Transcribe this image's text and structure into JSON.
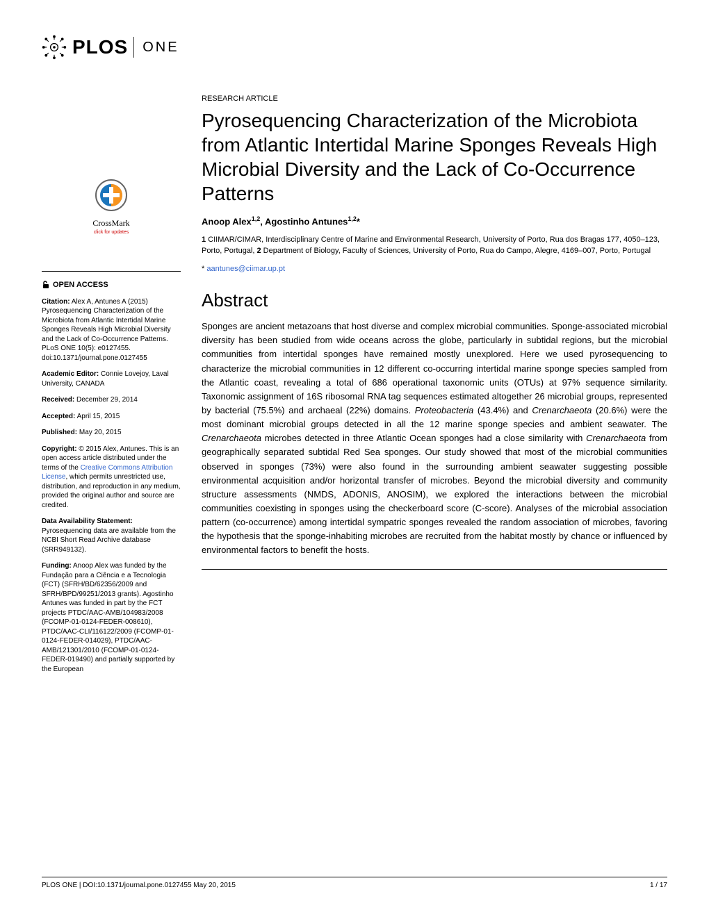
{
  "journal": {
    "logo_main": "PLOS",
    "logo_sub": "ONE"
  },
  "crossmark": {
    "label": "CrossMark",
    "sub": "click for updates"
  },
  "sidebar": {
    "open_access": "OPEN ACCESS",
    "citation_label": "Citation:",
    "citation": " Alex A, Antunes A (2015) Pyrosequencing Characterization of the Microbiota from Atlantic Intertidal Marine Sponges Reveals High Microbial Diversity and the Lack of Co-Occurrence Patterns. PLoS ONE 10(5): e0127455. doi:10.1371/journal.pone.0127455",
    "editor_label": "Academic Editor:",
    "editor": " Connie Lovejoy, Laval University, CANADA",
    "received_label": "Received:",
    "received": " December 29, 2014",
    "accepted_label": "Accepted:",
    "accepted": " April 15, 2015",
    "published_label": "Published:",
    "published": " May 20, 2015",
    "copyright_label": "Copyright:",
    "copyright_pre": " © 2015 Alex, Antunes. This is an open access article distributed under the terms of the ",
    "copyright_link": "Creative Commons Attribution License",
    "copyright_post": ", which permits unrestricted use, distribution, and reproduction in any medium, provided the original author and source are credited.",
    "data_label": "Data Availability Statement:",
    "data": " Pyrosequencing data are available from the NCBI Short Read Archive database (SRR949132).",
    "funding_label": "Funding:",
    "funding": " Anoop Alex was funded by the Fundação para a Ciência e a Tecnologia (FCT) (SFRH/BD/62356/2009 and SFRH/BPD/99251/2013 grants). Agostinho Antunes was funded in part by the FCT projects PTDC/AAC-AMB/104983/2008 (FCOMP-01-0124-FEDER-008610), PTDC/AAC-CLI/116122/2009 (FCOMP-01-0124-FEDER-014029), PTDC/AAC-AMB/121301/2010 (FCOMP-01-0124-FEDER-019490) and partially supported by the European"
  },
  "article": {
    "type": "RESEARCH ARTICLE",
    "title": "Pyrosequencing Characterization of the Microbiota from Atlantic Intertidal Marine Sponges Reveals High Microbial Diversity and the Lack of Co-Occurrence Patterns",
    "authors_html": "Anoop Alex<sup>1,2</sup>, Agostinho Antunes<sup>1,2</sup>*",
    "affiliations_html": "<b>1</b> CIIMAR/CIMAR, Interdisciplinary Centre of Marine and Environmental Research, University of Porto, Rua dos Bragas 177, 4050–123, Porto, Portugal, <b>2</b> Department of Biology, Faculty of Sciences, University of Porto, Rua do Campo, Alegre, 4169–007, Porto, Portugal",
    "corresponding_prefix": "* ",
    "corresponding_email": "aantunes@ciimar.up.pt",
    "abstract_heading": "Abstract",
    "abstract": "Sponges are ancient metazoans that host diverse and complex microbial communities. Sponge-associated microbial diversity has been studied from wide oceans across the globe, particularly in subtidal regions, but the microbial communities from intertidal sponges have remained mostly unexplored. Here we used pyrosequencing to characterize the microbial communities in 12 different co-occurring intertidal marine sponge species sampled from the Atlantic coast, revealing a total of 686 operational taxonomic units (OTUs) at 97% sequence similarity. Taxonomic assignment of 16S ribosomal RNA tag sequences estimated altogether 26 microbial groups, represented by bacterial (75.5%) and archaeal (22%) domains. <i>Proteobacteria</i> (43.4%) and <i>Crenarchaeota</i> (20.6%) were the most dominant microbial groups detected in all the 12 marine sponge species and ambient seawater. The <i>Crenarchaeota</i> microbes detected in three Atlantic Ocean sponges had a close similarity with <i>Crenarchaeota</i> from geographically separated subtidal Red Sea sponges. Our study showed that most of the microbial communities observed in sponges (73%) were also found in the surrounding ambient seawater suggesting possible environmental acquisition and/or horizontal transfer of microbes. Beyond the microbial diversity and community structure assessments (NMDS, ADONIS, ANOSIM), we explored the interactions between the microbial communities coexisting in sponges using the checkerboard score (C-score). Analyses of the microbial association pattern (co-occurrence) among intertidal sympatric sponges revealed the random association of microbes, favoring the hypothesis that the sponge-inhabiting microbes are recruited from the habitat mostly by chance or influenced by environmental factors to benefit the hosts."
  },
  "footer": {
    "left": "PLOS ONE | DOI:10.1371/journal.pone.0127455    May 20, 2015",
    "right": "1 / 17"
  },
  "colors": {
    "link": "#3366cc",
    "text": "#000000",
    "crossmark_orange": "#f7941e",
    "crossmark_blue": "#1b75bb"
  }
}
